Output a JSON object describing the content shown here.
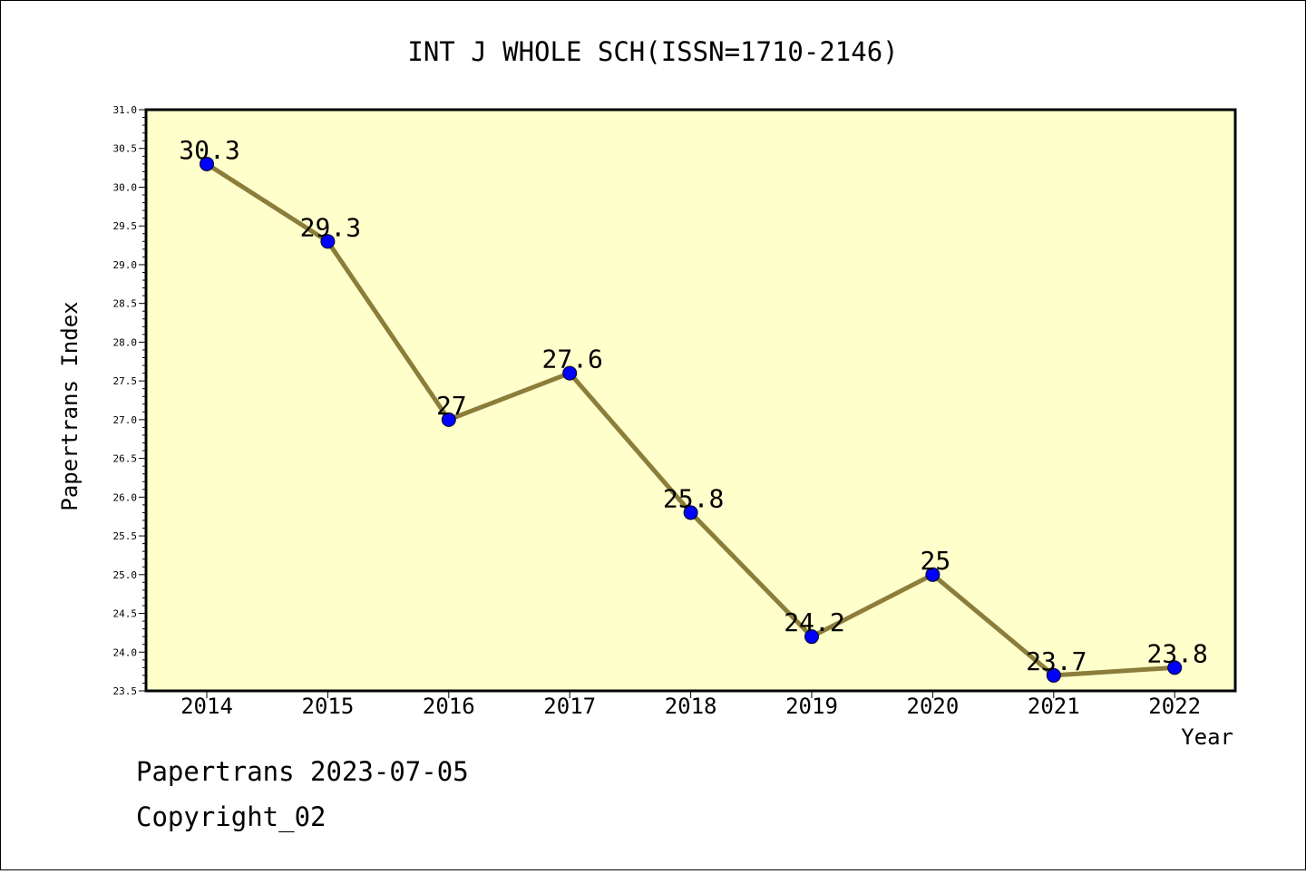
{
  "chart_data": {
    "type": "line",
    "title": "INT J WHOLE SCH(ISSN=1710-2146)",
    "xlabel": "Year",
    "ylabel": "Papertrans Index",
    "categories": [
      "2014",
      "2015",
      "2016",
      "2017",
      "2018",
      "2019",
      "2020",
      "2021",
      "2022"
    ],
    "values": [
      30.3,
      29.3,
      27,
      27.6,
      25.8,
      24.2,
      25,
      23.7,
      23.8
    ],
    "data_labels": [
      "30.3",
      "29.3",
      "27",
      "27.6",
      "25.8",
      "24.2",
      "25",
      "23.7",
      "23.8"
    ],
    "ylim": [
      23.5,
      31.0
    ],
    "y_ticks": [
      "23.5",
      "24.0",
      "24.5",
      "25.0",
      "25.5",
      "26.0",
      "26.5",
      "27.0",
      "27.5",
      "28.0",
      "28.5",
      "29.0",
      "29.5",
      "30.0",
      "30.5",
      "31.0"
    ],
    "grid": false,
    "colors": {
      "plot_background": "#ffffcc",
      "line": "#8b7d3a",
      "marker": "#0000ff"
    }
  },
  "footer": {
    "date_line": "Papertrans 2023-07-05",
    "copyright": "Copyright_02"
  }
}
